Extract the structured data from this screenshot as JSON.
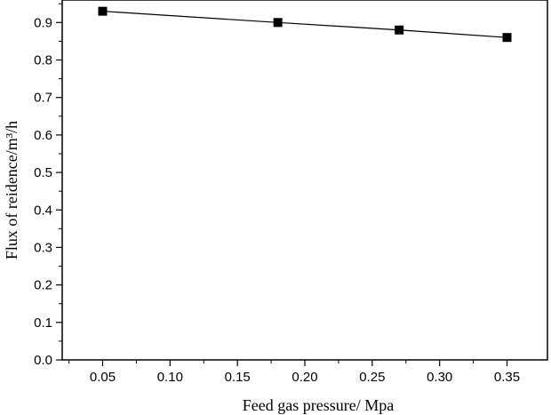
{
  "chart_data": {
    "type": "line",
    "title": "",
    "xlabel": "Feed gas pressure/ Mpa",
    "ylabel": "Flux of reidence/m³/h",
    "x_ticks": [
      "0.05",
      "0.10",
      "0.15",
      "0.20",
      "0.25",
      "0.30",
      "0.35"
    ],
    "y_ticks": [
      "0.0",
      "0.1",
      "0.2",
      "0.3",
      "0.4",
      "0.5",
      "0.6",
      "0.7",
      "0.8",
      "0.9"
    ],
    "xlim": [
      0.02,
      0.38
    ],
    "ylim": [
      0.0,
      0.96
    ],
    "series": [
      {
        "x": [
          0.05,
          0.18,
          0.27,
          0.35
        ],
        "y": [
          0.93,
          0.9,
          0.88,
          0.86
        ],
        "marker": "square",
        "color": "#000000"
      }
    ],
    "grid": false,
    "legend": "none"
  }
}
